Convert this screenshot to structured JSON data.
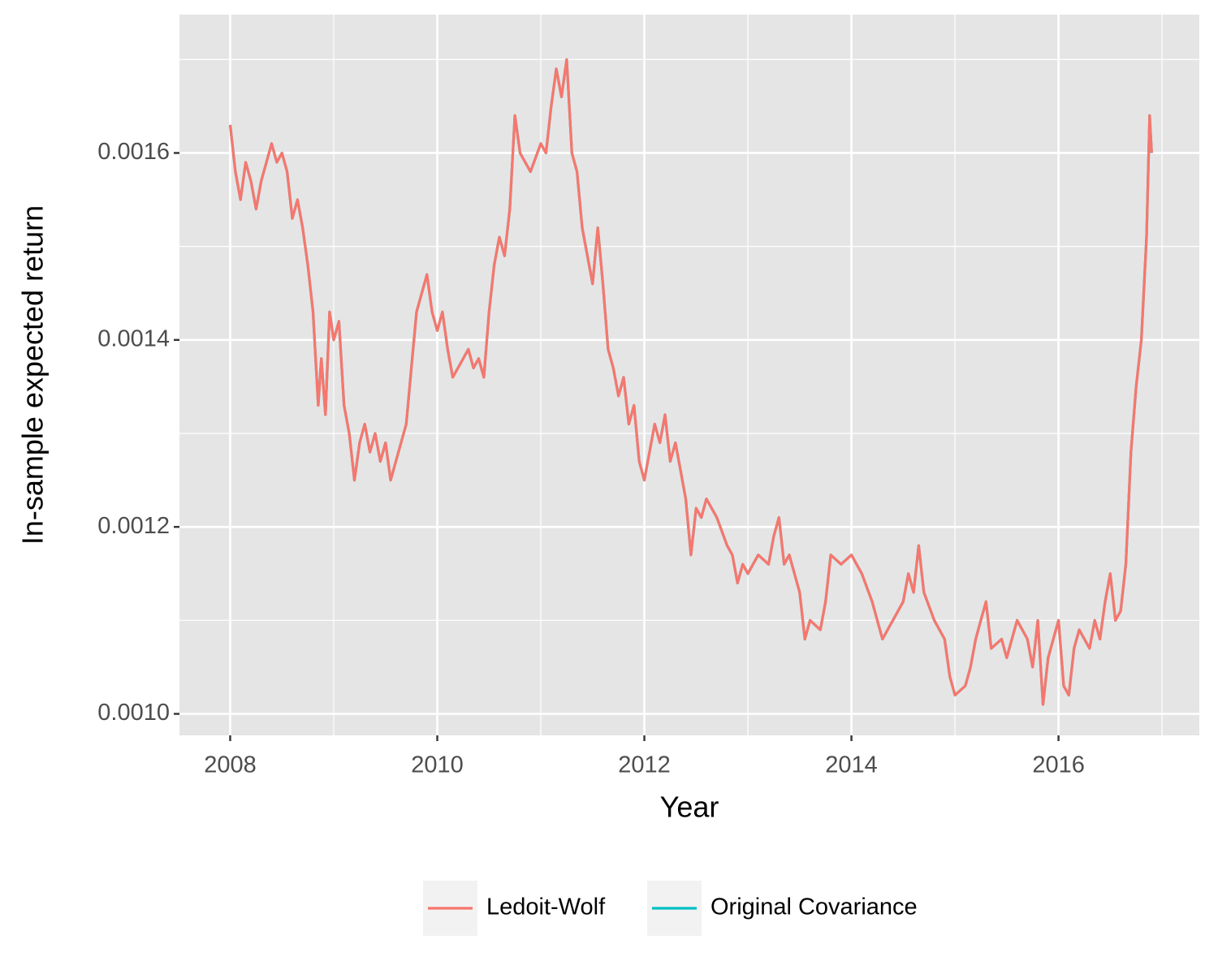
{
  "chart_data": {
    "type": "line",
    "x_label": "Year",
    "y_label": "In-sample expected return",
    "x": [
      2008.0,
      2008.05,
      2008.1,
      2008.15,
      2008.2,
      2008.25,
      2008.3,
      2008.4,
      2008.45,
      2008.5,
      2008.55,
      2008.6,
      2008.65,
      2008.7,
      2008.75,
      2008.8,
      2008.85,
      2008.88,
      2008.92,
      2008.96,
      2009.0,
      2009.05,
      2009.1,
      2009.15,
      2009.2,
      2009.25,
      2009.3,
      2009.35,
      2009.4,
      2009.45,
      2009.5,
      2009.55,
      2009.6,
      2009.7,
      2009.75,
      2009.8,
      2009.85,
      2009.9,
      2009.95,
      2010.0,
      2010.05,
      2010.1,
      2010.15,
      2010.2,
      2010.3,
      2010.35,
      2010.4,
      2010.45,
      2010.5,
      2010.55,
      2010.6,
      2010.65,
      2010.7,
      2010.75,
      2010.8,
      2010.9,
      2011.0,
      2011.05,
      2011.1,
      2011.15,
      2011.2,
      2011.25,
      2011.3,
      2011.35,
      2011.4,
      2011.45,
      2011.5,
      2011.55,
      2011.6,
      2011.65,
      2011.7,
      2011.75,
      2011.8,
      2011.85,
      2011.9,
      2011.95,
      2012.0,
      2012.05,
      2012.1,
      2012.15,
      2012.2,
      2012.25,
      2012.3,
      2012.35,
      2012.4,
      2012.45,
      2012.5,
      2012.55,
      2012.6,
      2012.7,
      2012.8,
      2012.85,
      2012.9,
      2012.95,
      2013.0,
      2013.1,
      2013.2,
      2013.25,
      2013.3,
      2013.35,
      2013.4,
      2013.45,
      2013.5,
      2013.55,
      2013.6,
      2013.7,
      2013.75,
      2013.8,
      2013.9,
      2014.0,
      2014.05,
      2014.1,
      2014.2,
      2014.25,
      2014.3,
      2014.4,
      2014.5,
      2014.55,
      2014.6,
      2014.65,
      2014.7,
      2014.8,
      2014.9,
      2014.95,
      2015.0,
      2015.1,
      2015.15,
      2015.2,
      2015.25,
      2015.3,
      2015.35,
      2015.45,
      2015.5,
      2015.6,
      2015.7,
      2015.75,
      2015.8,
      2015.85,
      2015.9,
      2016.0,
      2016.05,
      2016.1,
      2016.15,
      2016.2,
      2016.3,
      2016.35,
      2016.4,
      2016.45,
      2016.5,
      2016.55,
      2016.6,
      2016.65,
      2016.7,
      2016.75,
      2016.8,
      2016.85,
      2016.88,
      2016.9
    ],
    "series": [
      {
        "name": "Ledoit-Wolf",
        "color": "#f8766d",
        "values": [
          0.00163,
          0.00158,
          0.00155,
          0.00159,
          0.00157,
          0.00154,
          0.00157,
          0.00161,
          0.00159,
          0.0016,
          0.00158,
          0.00153,
          0.00155,
          0.00152,
          0.00148,
          0.00143,
          0.00133,
          0.00138,
          0.00132,
          0.00143,
          0.0014,
          0.00142,
          0.00133,
          0.0013,
          0.00125,
          0.00129,
          0.00131,
          0.00128,
          0.0013,
          0.00127,
          0.00129,
          0.00125,
          0.00127,
          0.00131,
          0.00137,
          0.00143,
          0.00145,
          0.00147,
          0.00143,
          0.00141,
          0.00143,
          0.00139,
          0.00136,
          0.00137,
          0.00139,
          0.00137,
          0.00138,
          0.00136,
          0.00143,
          0.00148,
          0.00151,
          0.00149,
          0.00154,
          0.00164,
          0.0016,
          0.00158,
          0.00161,
          0.0016,
          0.00165,
          0.00169,
          0.00166,
          0.0017,
          0.0016,
          0.00158,
          0.00152,
          0.00149,
          0.00146,
          0.00152,
          0.00146,
          0.00139,
          0.00137,
          0.00134,
          0.00136,
          0.00131,
          0.00133,
          0.00127,
          0.00125,
          0.00128,
          0.00131,
          0.00129,
          0.00132,
          0.00127,
          0.00129,
          0.00126,
          0.00123,
          0.00117,
          0.00122,
          0.00121,
          0.00123,
          0.00121,
          0.00118,
          0.00117,
          0.00114,
          0.00116,
          0.00115,
          0.00117,
          0.00116,
          0.00119,
          0.00121,
          0.00116,
          0.00117,
          0.00115,
          0.00113,
          0.00108,
          0.0011,
          0.00109,
          0.00112,
          0.00117,
          0.00116,
          0.00117,
          0.00116,
          0.00115,
          0.00112,
          0.0011,
          0.00108,
          0.0011,
          0.00112,
          0.00115,
          0.00113,
          0.00118,
          0.00113,
          0.0011,
          0.00108,
          0.00104,
          0.00102,
          0.00103,
          0.00105,
          0.00108,
          0.0011,
          0.00112,
          0.00107,
          0.00108,
          0.00106,
          0.0011,
          0.00108,
          0.00105,
          0.0011,
          0.00101,
          0.00106,
          0.0011,
          0.00103,
          0.00102,
          0.00107,
          0.00109,
          0.00107,
          0.0011,
          0.00108,
          0.00112,
          0.00115,
          0.0011,
          0.00111,
          0.00116,
          0.00128,
          0.00135,
          0.0014,
          0.00151,
          0.00164,
          0.0016
        ]
      },
      {
        "name": "Original Covariance",
        "color": "#00bfc4",
        "values": [
          0.00163,
          0.00158,
          0.00155,
          0.00159,
          0.00157,
          0.00154,
          0.00157,
          0.00161,
          0.00159,
          0.0016,
          0.00158,
          0.00153,
          0.00155,
          0.00152,
          0.00148,
          0.00143,
          0.00133,
          0.00138,
          0.00132,
          0.00143,
          0.0014,
          0.00142,
          0.00133,
          0.0013,
          0.00125,
          0.00129,
          0.00131,
          0.00128,
          0.0013,
          0.00127,
          0.00129,
          0.00125,
          0.00127,
          0.00131,
          0.00137,
          0.00143,
          0.00145,
          0.00147,
          0.00143,
          0.00141,
          0.00143,
          0.00139,
          0.00136,
          0.00137,
          0.00139,
          0.00137,
          0.00138,
          0.00136,
          0.00143,
          0.00148,
          0.00151,
          0.00149,
          0.00154,
          0.00164,
          0.0016,
          0.00158,
          0.00161,
          0.0016,
          0.00165,
          0.00169,
          0.00166,
          0.0017,
          0.0016,
          0.00158,
          0.00152,
          0.00149,
          0.00146,
          0.00152,
          0.00146,
          0.00139,
          0.00137,
          0.00134,
          0.00136,
          0.00131,
          0.00133,
          0.00127,
          0.00125,
          0.00128,
          0.00131,
          0.00129,
          0.00132,
          0.00127,
          0.00129,
          0.00126,
          0.00123,
          0.00117,
          0.00122,
          0.00121,
          0.00123,
          0.00121,
          0.00118,
          0.00117,
          0.00114,
          0.00116,
          0.00115,
          0.00117,
          0.00116,
          0.00119,
          0.00121,
          0.00116,
          0.00117,
          0.00115,
          0.00113,
          0.00108,
          0.0011,
          0.00109,
          0.00112,
          0.00117,
          0.00116,
          0.00117,
          0.00116,
          0.00115,
          0.00112,
          0.0011,
          0.00108,
          0.0011,
          0.00112,
          0.00115,
          0.00113,
          0.00118,
          0.00113,
          0.0011,
          0.00108,
          0.00104,
          0.00102,
          0.00103,
          0.00105,
          0.00108,
          0.0011,
          0.00112,
          0.00107,
          0.00108,
          0.00106,
          0.0011,
          0.00108,
          0.00105,
          0.0011,
          0.00101,
          0.00106,
          0.0011,
          0.00103,
          0.00102,
          0.00107,
          0.00109,
          0.00107,
          0.0011,
          0.00108,
          0.00112,
          0.00115,
          0.0011,
          0.00111,
          0.00116,
          0.00128,
          0.00135,
          0.0014,
          0.00151,
          0.00164,
          0.0016
        ]
      }
    ],
    "xlim": [
      2007.51,
      2017.36
    ],
    "xticks": [
      2008,
      2010,
      2012,
      2014,
      2016
    ],
    "minor_xticks": [
      2009,
      2011,
      2013,
      2015,
      2017
    ],
    "ylim": [
      0.000977,
      0.001748
    ],
    "yticks": [
      {
        "value": 0.001,
        "label": "0.0010"
      },
      0.0012,
      0.0014,
      0.0016
    ],
    "minor_yticks": [
      0.0011,
      0.0013,
      0.0015,
      0.0017
    ],
    "grid": true,
    "legend_position": "bottom"
  }
}
